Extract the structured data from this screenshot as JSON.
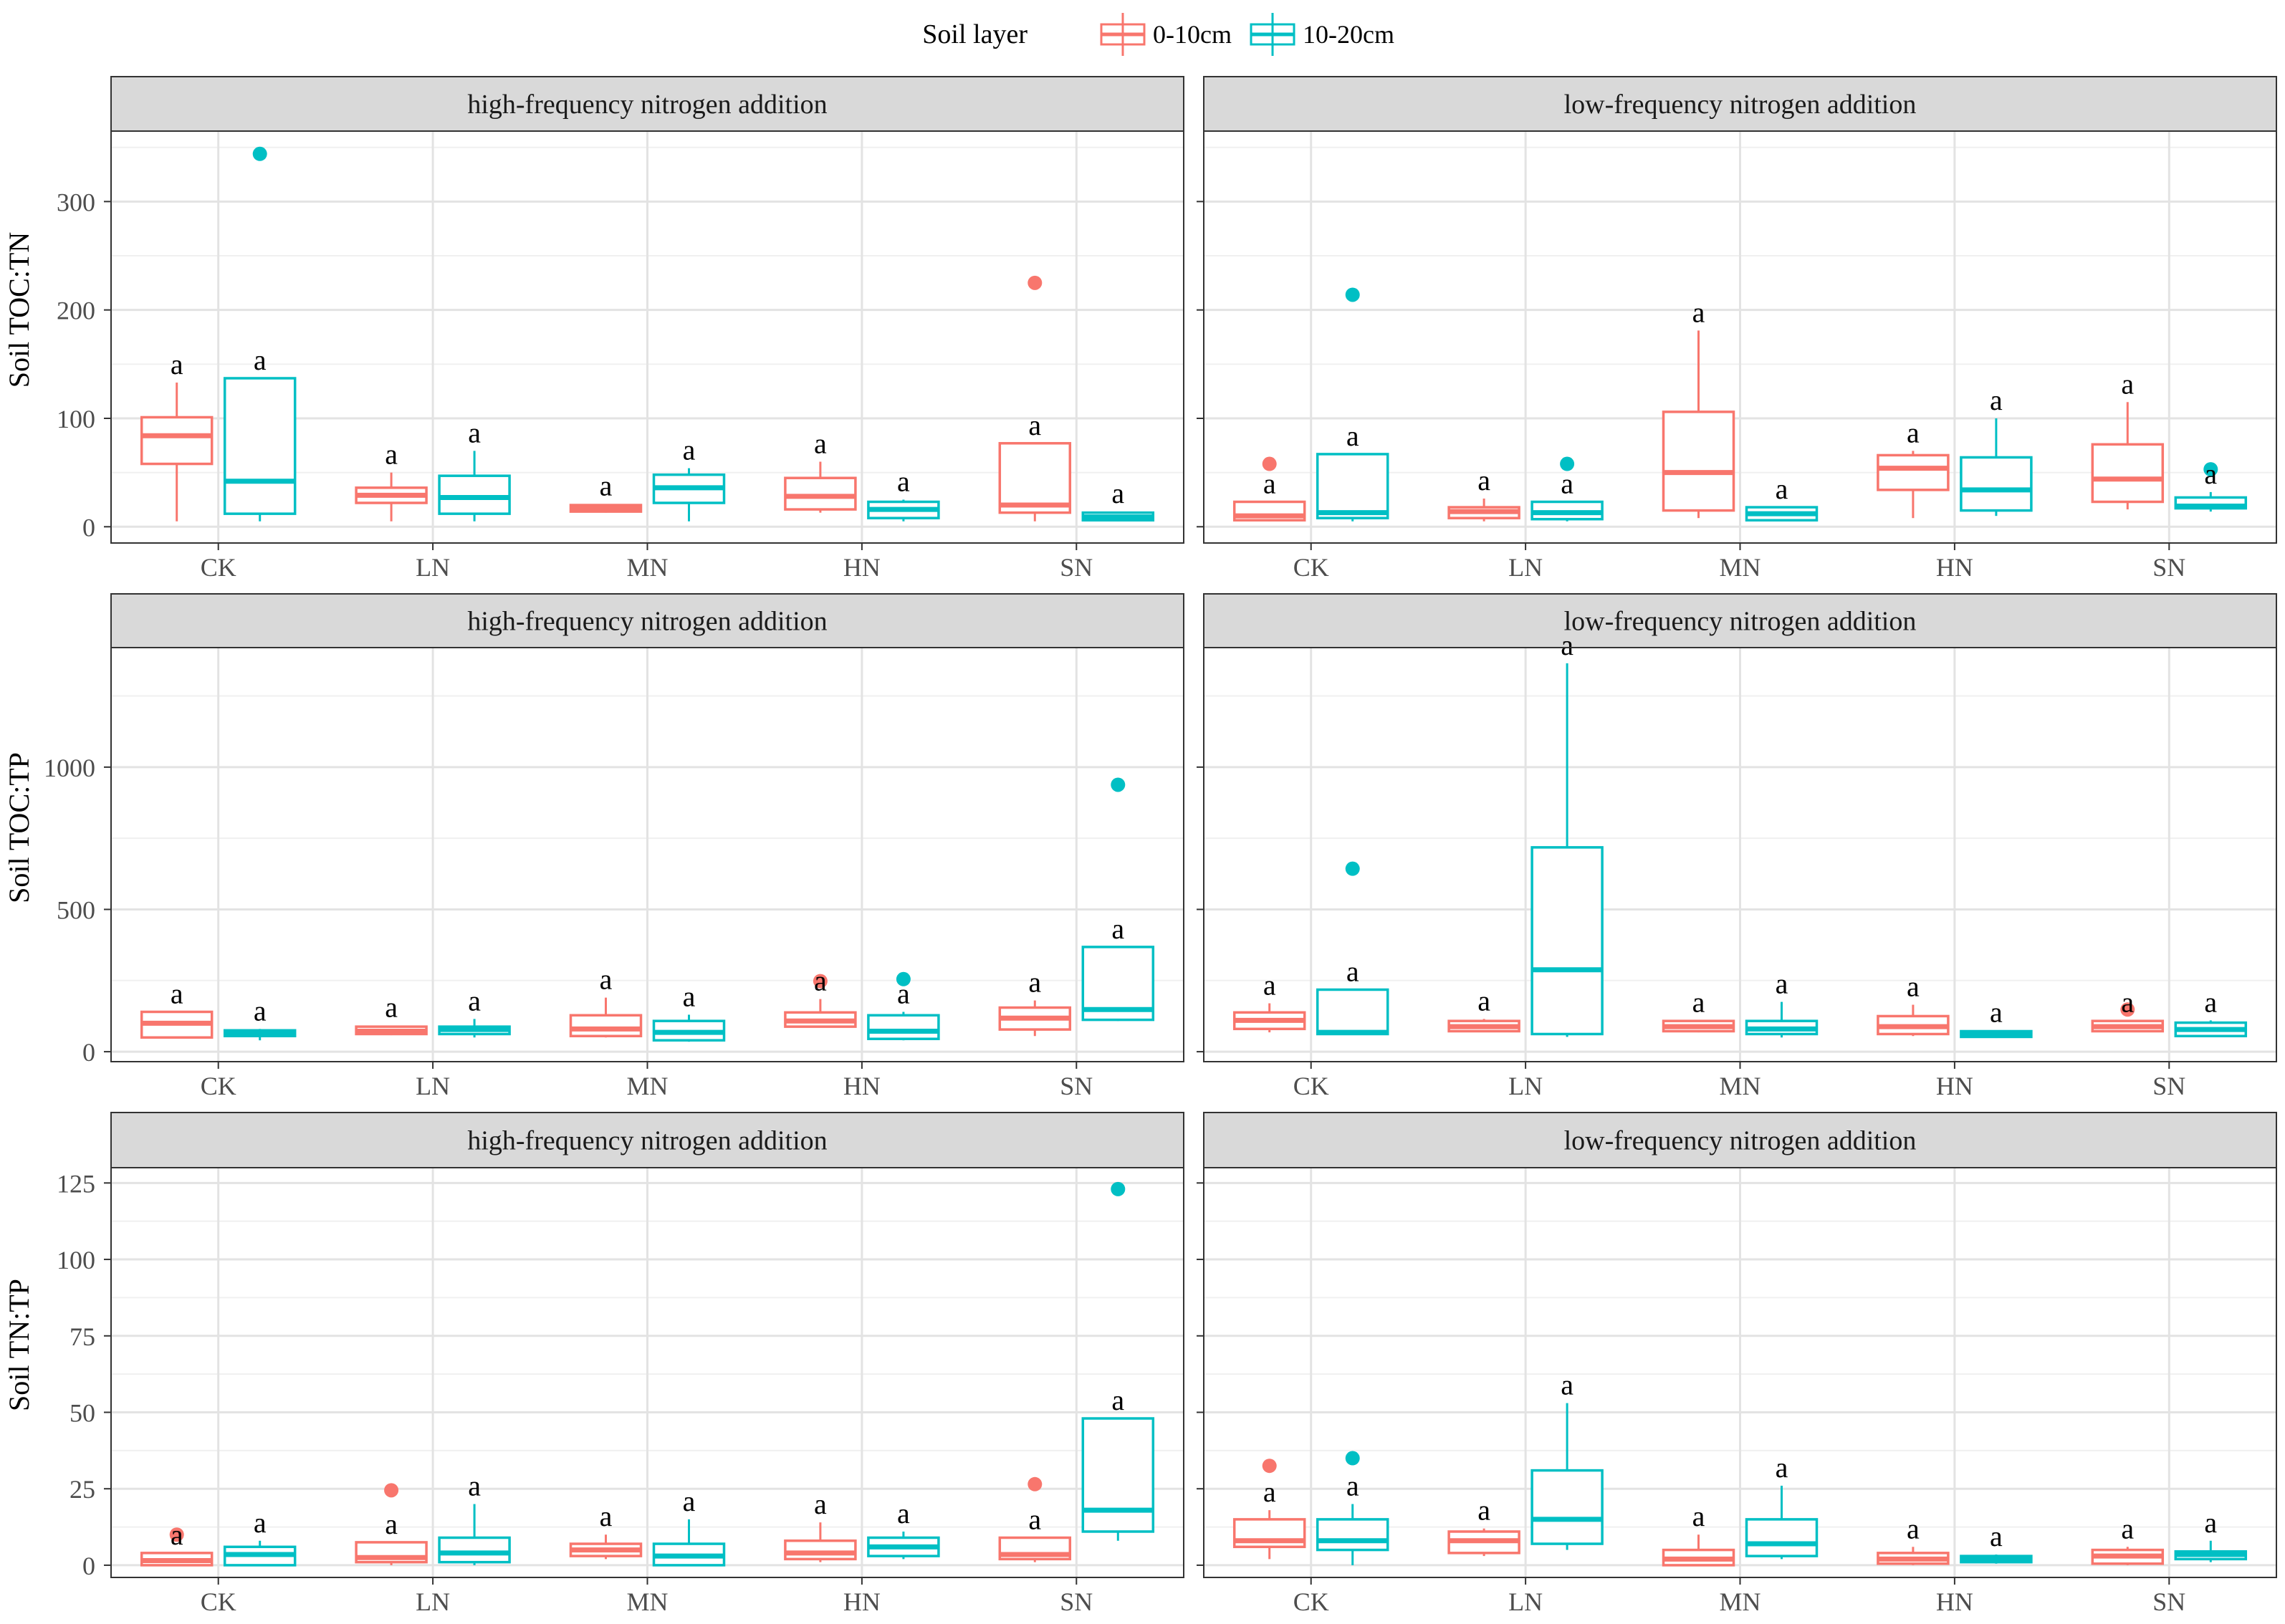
{
  "legend": {
    "title": "Soil layer",
    "items": [
      {
        "label": "0-10cm",
        "color": "#F8766D"
      },
      {
        "label": "10-20cm",
        "color": "#00BFC4"
      }
    ]
  },
  "chart_data": [
    {
      "type": "box",
      "row": 0,
      "ylabel": "Soil TOC:TN",
      "ylim": [
        -15,
        365
      ],
      "yticks": [
        0,
        100,
        200,
        300
      ],
      "categories": [
        "CK",
        "LN",
        "MN",
        "HN",
        "SN"
      ],
      "series_names": [
        "0-10cm",
        "10-20cm"
      ],
      "panels": [
        {
          "title": "high-frequency nitrogen addition",
          "boxes": [
            {
              "cat": 0,
              "series": 0,
              "min": 5,
              "q1": 58,
              "median": 84,
              "q3": 101,
              "max": 133,
              "outliers": [],
              "letter": "a"
            },
            {
              "cat": 0,
              "series": 1,
              "min": 5,
              "q1": 12,
              "median": 42,
              "q3": 137,
              "max": 137,
              "outliers": [
                344
              ],
              "letter": "a"
            },
            {
              "cat": 1,
              "series": 0,
              "min": 5,
              "q1": 22,
              "median": 29,
              "q3": 36,
              "max": 50,
              "outliers": [],
              "letter": "a"
            },
            {
              "cat": 1,
              "series": 1,
              "min": 5,
              "q1": 12,
              "median": 27,
              "q3": 47,
              "max": 70,
              "outliers": [],
              "letter": "a"
            },
            {
              "cat": 2,
              "series": 0,
              "min": 13,
              "q1": 14,
              "median": 17,
              "q3": 20,
              "max": 21,
              "outliers": [],
              "letter": "a"
            },
            {
              "cat": 2,
              "series": 1,
              "min": 5,
              "q1": 22,
              "median": 36,
              "q3": 48,
              "max": 54,
              "outliers": [],
              "letter": "a"
            },
            {
              "cat": 3,
              "series": 0,
              "min": 13,
              "q1": 16,
              "median": 28,
              "q3": 45,
              "max": 60,
              "outliers": [],
              "letter": "a"
            },
            {
              "cat": 3,
              "series": 1,
              "min": 5,
              "q1": 8,
              "median": 16,
              "q3": 23,
              "max": 25,
              "outliers": [],
              "letter": "a"
            },
            {
              "cat": 4,
              "series": 0,
              "min": 5,
              "q1": 13,
              "median": 20,
              "q3": 77,
              "max": 77,
              "outliers": [
                225
              ],
              "letter": "a"
            },
            {
              "cat": 4,
              "series": 1,
              "min": 5,
              "q1": 6,
              "median": 9,
              "q3": 13,
              "max": 14,
              "outliers": [],
              "letter": "a"
            }
          ]
        },
        {
          "title": "low-frequency nitrogen addition",
          "boxes": [
            {
              "cat": 0,
              "series": 0,
              "min": 5,
              "q1": 6,
              "median": 10,
              "q3": 23,
              "max": 23,
              "outliers": [
                58
              ],
              "letter": "a"
            },
            {
              "cat": 0,
              "series": 1,
              "min": 5,
              "q1": 8,
              "median": 13,
              "q3": 67,
              "max": 67,
              "outliers": [
                214
              ],
              "letter": "a"
            },
            {
              "cat": 1,
              "series": 0,
              "min": 5,
              "q1": 8,
              "median": 14,
              "q3": 18,
              "max": 26,
              "outliers": [],
              "letter": "a"
            },
            {
              "cat": 1,
              "series": 1,
              "min": 5,
              "q1": 7,
              "median": 13,
              "q3": 23,
              "max": 23,
              "outliers": [
                58
              ],
              "letter": "a"
            },
            {
              "cat": 2,
              "series": 0,
              "min": 8,
              "q1": 15,
              "median": 50,
              "q3": 106,
              "max": 181,
              "outliers": [],
              "letter": "a"
            },
            {
              "cat": 2,
              "series": 1,
              "min": 5,
              "q1": 6,
              "median": 12,
              "q3": 18,
              "max": 18,
              "outliers": [],
              "letter": "a"
            },
            {
              "cat": 3,
              "series": 0,
              "min": 8,
              "q1": 34,
              "median": 54,
              "q3": 66,
              "max": 70,
              "outliers": [],
              "letter": "a"
            },
            {
              "cat": 3,
              "series": 1,
              "min": 10,
              "q1": 15,
              "median": 34,
              "q3": 64,
              "max": 100,
              "outliers": [],
              "letter": "a"
            },
            {
              "cat": 4,
              "series": 0,
              "min": 16,
              "q1": 23,
              "median": 44,
              "q3": 76,
              "max": 115,
              "outliers": [],
              "letter": "a"
            },
            {
              "cat": 4,
              "series": 1,
              "min": 14,
              "q1": 17,
              "median": 19,
              "q3": 27,
              "max": 32,
              "outliers": [
                53
              ],
              "letter": "a"
            }
          ]
        }
      ]
    },
    {
      "type": "box",
      "row": 1,
      "ylabel": "Soil TOC:TP",
      "ylim": [
        -35,
        1420
      ],
      "yticks": [
        0,
        500,
        1000
      ],
      "categories": [
        "CK",
        "LN",
        "MN",
        "HN",
        "SN"
      ],
      "series_names": [
        "0-10cm",
        "10-20cm"
      ],
      "panels": [
        {
          "title": "high-frequency nitrogen addition",
          "boxes": [
            {
              "cat": 0,
              "series": 0,
              "min": 50,
              "q1": 50,
              "median": 100,
              "q3": 140,
              "max": 140,
              "outliers": [],
              "letter": "a"
            },
            {
              "cat": 0,
              "series": 1,
              "min": 40,
              "q1": 55,
              "median": 62,
              "q3": 75,
              "max": 80,
              "outliers": [],
              "letter": "a"
            },
            {
              "cat": 1,
              "series": 0,
              "min": 58,
              "q1": 62,
              "median": 72,
              "q3": 88,
              "max": 92,
              "outliers": [],
              "letter": "a"
            },
            {
              "cat": 1,
              "series": 1,
              "min": 50,
              "q1": 62,
              "median": 78,
              "q3": 88,
              "max": 115,
              "outliers": [],
              "letter": "a"
            },
            {
              "cat": 2,
              "series": 0,
              "min": 50,
              "q1": 55,
              "median": 80,
              "q3": 128,
              "max": 190,
              "outliers": [],
              "letter": "a"
            },
            {
              "cat": 2,
              "series": 1,
              "min": 35,
              "q1": 40,
              "median": 68,
              "q3": 108,
              "max": 130,
              "outliers": [],
              "letter": "a"
            },
            {
              "cat": 3,
              "series": 0,
              "min": 88,
              "q1": 88,
              "median": 108,
              "q3": 138,
              "max": 185,
              "outliers": [
                248
              ],
              "letter": "a"
            },
            {
              "cat": 3,
              "series": 1,
              "min": 40,
              "q1": 45,
              "median": 72,
              "q3": 128,
              "max": 140,
              "outliers": [
                255
              ],
              "letter": "a"
            },
            {
              "cat": 4,
              "series": 0,
              "min": 55,
              "q1": 78,
              "median": 118,
              "q3": 155,
              "max": 180,
              "outliers": [],
              "letter": "a"
            },
            {
              "cat": 4,
              "series": 1,
              "min": 108,
              "q1": 112,
              "median": 148,
              "q3": 368,
              "max": 368,
              "outliers": [
                938
              ],
              "letter": "a"
            }
          ]
        },
        {
          "title": "low-frequency nitrogen addition",
          "boxes": [
            {
              "cat": 0,
              "series": 0,
              "min": 68,
              "q1": 80,
              "median": 110,
              "q3": 138,
              "max": 170,
              "outliers": [],
              "letter": "a"
            },
            {
              "cat": 0,
              "series": 1,
              "min": 60,
              "q1": 62,
              "median": 68,
              "q3": 218,
              "max": 218,
              "outliers": [
                643
              ],
              "letter": "a"
            },
            {
              "cat": 1,
              "series": 0,
              "min": 72,
              "q1": 72,
              "median": 88,
              "q3": 108,
              "max": 115,
              "outliers": [],
              "letter": "a"
            },
            {
              "cat": 1,
              "series": 1,
              "min": 52,
              "q1": 62,
              "median": 288,
              "q3": 718,
              "max": 1365,
              "outliers": [],
              "letter": "a"
            },
            {
              "cat": 2,
              "series": 0,
              "min": 68,
              "q1": 72,
              "median": 88,
              "q3": 108,
              "max": 110,
              "outliers": [],
              "letter": "a"
            },
            {
              "cat": 2,
              "series": 1,
              "min": 50,
              "q1": 62,
              "median": 80,
              "q3": 108,
              "max": 175,
              "outliers": [],
              "letter": "a"
            },
            {
              "cat": 3,
              "series": 0,
              "min": 55,
              "q1": 62,
              "median": 88,
              "q3": 125,
              "max": 165,
              "outliers": [],
              "letter": "a"
            },
            {
              "cat": 3,
              "series": 1,
              "min": 48,
              "q1": 52,
              "median": 62,
              "q3": 72,
              "max": 75,
              "outliers": [],
              "letter": "a"
            },
            {
              "cat": 4,
              "series": 0,
              "min": 72,
              "q1": 72,
              "median": 88,
              "q3": 108,
              "max": 110,
              "outliers": [
                148
              ],
              "letter": "a"
            },
            {
              "cat": 4,
              "series": 1,
              "min": 52,
              "q1": 55,
              "median": 78,
              "q3": 102,
              "max": 110,
              "outliers": [],
              "letter": "a"
            }
          ]
        }
      ]
    },
    {
      "type": "box",
      "row": 2,
      "ylabel": "Soil TN:TP",
      "ylim": [
        -4,
        130
      ],
      "yticks": [
        0,
        25,
        50,
        75,
        100,
        125
      ],
      "categories": [
        "CK",
        "LN",
        "MN",
        "HN",
        "SN"
      ],
      "series_names": [
        "0-10cm",
        "10-20cm"
      ],
      "panels": [
        {
          "title": "high-frequency nitrogen addition",
          "boxes": [
            {
              "cat": 0,
              "series": 0,
              "min": 0,
              "q1": 0,
              "median": 1.5,
              "q3": 4,
              "max": 4,
              "outliers": [
                10
              ],
              "letter": "a"
            },
            {
              "cat": 0,
              "series": 1,
              "min": 0,
              "q1": 0,
              "median": 3.5,
              "q3": 6,
              "max": 8,
              "outliers": [],
              "letter": "a"
            },
            {
              "cat": 1,
              "series": 0,
              "min": 0,
              "q1": 1,
              "median": 2.5,
              "q3": 7.5,
              "max": 7.5,
              "outliers": [
                24.5
              ],
              "letter": "a"
            },
            {
              "cat": 1,
              "series": 1,
              "min": 0,
              "q1": 1,
              "median": 4,
              "q3": 9,
              "max": 20,
              "outliers": [],
              "letter": "a"
            },
            {
              "cat": 2,
              "series": 0,
              "min": 2,
              "q1": 3,
              "median": 5,
              "q3": 7,
              "max": 10,
              "outliers": [],
              "letter": "a"
            },
            {
              "cat": 2,
              "series": 1,
              "min": 0,
              "q1": 0,
              "median": 3,
              "q3": 7,
              "max": 15,
              "outliers": [],
              "letter": "a"
            },
            {
              "cat": 3,
              "series": 0,
              "min": 1,
              "q1": 2,
              "median": 4,
              "q3": 8,
              "max": 14,
              "outliers": [],
              "letter": "a"
            },
            {
              "cat": 3,
              "series": 1,
              "min": 2,
              "q1": 3,
              "median": 6,
              "q3": 9,
              "max": 11,
              "outliers": [],
              "letter": "a"
            },
            {
              "cat": 4,
              "series": 0,
              "min": 1,
              "q1": 2,
              "median": 3.5,
              "q3": 9,
              "max": 9,
              "outliers": [
                26.5
              ],
              "letter": "a"
            },
            {
              "cat": 4,
              "series": 1,
              "min": 8,
              "q1": 11,
              "median": 18,
              "q3": 48,
              "max": 48,
              "outliers": [
                123
              ],
              "letter": "a"
            }
          ]
        },
        {
          "title": "low-frequency nitrogen addition",
          "boxes": [
            {
              "cat": 0,
              "series": 0,
              "min": 2,
              "q1": 6,
              "median": 8,
              "q3": 15,
              "max": 18,
              "outliers": [
                32.5
              ],
              "letter": "a"
            },
            {
              "cat": 0,
              "series": 1,
              "min": 0,
              "q1": 5,
              "median": 8,
              "q3": 15,
              "max": 20,
              "outliers": [
                35
              ],
              "letter": "a"
            },
            {
              "cat": 1,
              "series": 0,
              "min": 3,
              "q1": 4,
              "median": 8,
              "q3": 11,
              "max": 12,
              "outliers": [],
              "letter": "a"
            },
            {
              "cat": 1,
              "series": 1,
              "min": 5,
              "q1": 7,
              "median": 15,
              "q3": 31,
              "max": 53,
              "outliers": [],
              "letter": "a"
            },
            {
              "cat": 2,
              "series": 0,
              "min": 0,
              "q1": 0,
              "median": 2,
              "q3": 5,
              "max": 10,
              "outliers": [],
              "letter": "a"
            },
            {
              "cat": 2,
              "series": 1,
              "min": 2,
              "q1": 3,
              "median": 7,
              "q3": 15,
              "max": 26,
              "outliers": [],
              "letter": "a"
            },
            {
              "cat": 3,
              "series": 0,
              "min": 0,
              "q1": 0.5,
              "median": 2,
              "q3": 4,
              "max": 6,
              "outliers": [],
              "letter": "a"
            },
            {
              "cat": 3,
              "series": 1,
              "min": 0.5,
              "q1": 1,
              "median": 2,
              "q3": 3,
              "max": 3.5,
              "outliers": [],
              "letter": "a"
            },
            {
              "cat": 4,
              "series": 0,
              "min": 0,
              "q1": 0.5,
              "median": 3,
              "q3": 5,
              "max": 6,
              "outliers": [],
              "letter": "a"
            },
            {
              "cat": 4,
              "series": 1,
              "min": 1,
              "q1": 2,
              "median": 3.5,
              "q3": 4.5,
              "max": 8,
              "outliers": [],
              "letter": "a"
            }
          ]
        }
      ]
    }
  ]
}
